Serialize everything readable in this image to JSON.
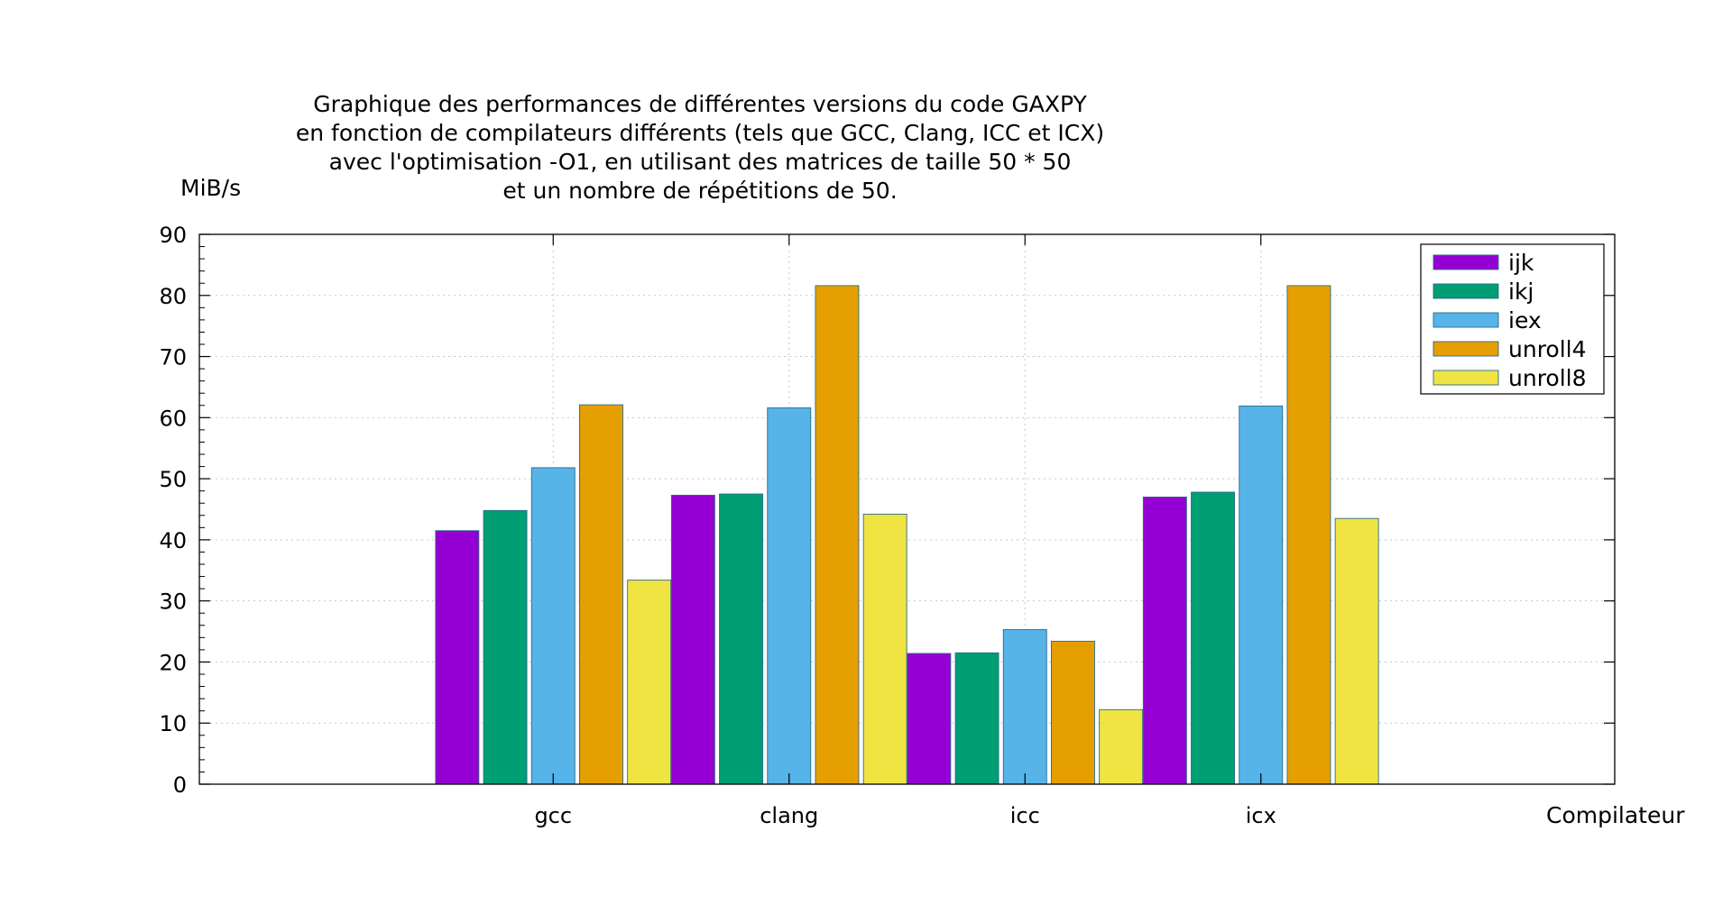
{
  "chart_data": {
    "type": "bar",
    "title": [
      "Graphique des performances de différentes versions du code GAXPY",
      "en fonction de compilateurs différents (tels que GCC, Clang, ICC et ICX)",
      "avec l'optimisation -O1, en utilisant des matrices de taille 50 * 50",
      "et un nombre de répétitions de 50."
    ],
    "xlabel": "Compilateur",
    "ylabel": "MiB/s",
    "categories": [
      "gcc",
      "clang",
      "icc",
      "icx"
    ],
    "ylim": [
      0,
      90
    ],
    "yticks": [
      "0",
      "10",
      "20",
      "30",
      "40",
      "50",
      "60",
      "70",
      "80",
      "90"
    ],
    "grid": true,
    "legend_position": "top-right",
    "series": [
      {
        "name": "ijk",
        "color": "#9400d3",
        "values": [
          41.5,
          47.3,
          21.4,
          47.0
        ]
      },
      {
        "name": "ikj",
        "color": "#009e73",
        "values": [
          44.8,
          47.5,
          21.5,
          47.8
        ]
      },
      {
        "name": "iex",
        "color": "#56b4e9",
        "values": [
          51.8,
          61.6,
          25.3,
          61.9
        ]
      },
      {
        "name": "unroll4",
        "color": "#e69f00",
        "values": [
          62.1,
          81.6,
          23.4,
          81.6
        ]
      },
      {
        "name": "unroll8",
        "color": "#f0e442",
        "values": [
          33.4,
          44.2,
          12.2,
          43.5
        ]
      }
    ]
  }
}
